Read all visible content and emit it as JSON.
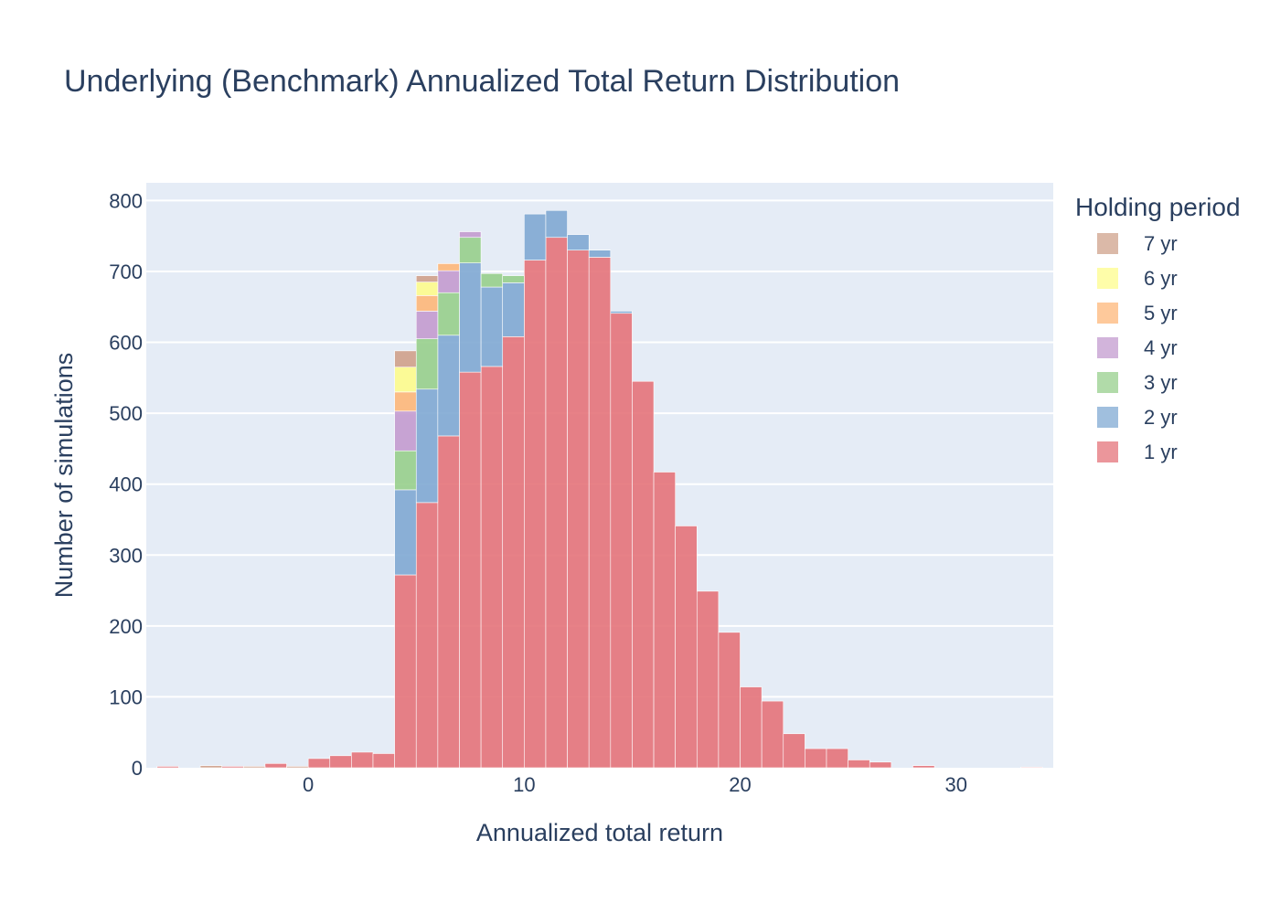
{
  "chart_data": {
    "type": "bar",
    "barmode": "stack",
    "title": "Underlying (Benchmark) Annualized Total Return Distribution",
    "xlabel": "Annualized total return",
    "ylabel": "Number of simulations",
    "xlim": [
      -7.5,
      34.5
    ],
    "ylim": [
      0,
      825
    ],
    "xticks": [
      0,
      10,
      20,
      30
    ],
    "yticks": [
      0,
      100,
      200,
      300,
      400,
      500,
      600,
      700,
      800
    ],
    "grid": true,
    "background": "#e5ecf6",
    "legend_title": "Holding period",
    "legend_position": "right",
    "bin_width": 1,
    "bin_starts": [
      -7,
      -6,
      -5,
      -4,
      -3,
      -2,
      -1,
      0,
      1,
      2,
      3,
      4,
      5,
      6,
      7,
      8,
      9,
      10,
      11,
      12,
      13,
      14,
      15,
      16,
      17,
      18,
      19,
      20,
      21,
      22,
      23,
      24,
      25,
      26,
      27,
      28,
      29,
      30,
      31,
      32,
      33
    ],
    "series": [
      {
        "name": "1 yr",
        "color": "#e4737a",
        "values": [
          2,
          0,
          0,
          2,
          0,
          6,
          0,
          13,
          17,
          22,
          20,
          272,
          374,
          468,
          558,
          566,
          608,
          716,
          748,
          730,
          720,
          641,
          545,
          417,
          341,
          249,
          191,
          114,
          94,
          48,
          27,
          27,
          11,
          8,
          0,
          3,
          0,
          0,
          0,
          0,
          1
        ]
      },
      {
        "name": "2 yr",
        "color": "#80a9d3",
        "values": [
          0,
          0,
          0,
          0,
          0,
          0,
          0,
          0,
          0,
          0,
          0,
          120,
          160,
          142,
          154,
          112,
          76,
          65,
          38,
          22,
          10,
          3,
          0,
          0,
          0,
          0,
          0,
          0,
          0,
          0,
          0,
          0,
          0,
          0,
          0,
          0,
          0,
          0,
          0,
          0,
          0
        ]
      },
      {
        "name": "3 yr",
        "color": "#97cf8c",
        "values": [
          0,
          0,
          0,
          0,
          0,
          0,
          0,
          0,
          0,
          0,
          0,
          55,
          71,
          60,
          36,
          19,
          10,
          0,
          0,
          0,
          0,
          0,
          0,
          0,
          0,
          0,
          0,
          0,
          0,
          0,
          0,
          0,
          0,
          0,
          0,
          0,
          0,
          0,
          0,
          0,
          0
        ]
      },
      {
        "name": "4 yr",
        "color": "#c39bcf",
        "values": [
          0,
          0,
          0,
          0,
          0,
          0,
          0,
          0,
          0,
          0,
          0,
          56,
          39,
          31,
          8,
          0,
          0,
          0,
          0,
          0,
          0,
          0,
          0,
          0,
          0,
          0,
          0,
          0,
          0,
          0,
          0,
          0,
          0,
          0,
          0,
          0,
          0,
          0,
          0,
          0,
          0
        ]
      },
      {
        "name": "5 yr",
        "color": "#fdb779",
        "values": [
          0,
          0,
          0,
          0,
          0,
          0,
          0,
          0,
          0,
          0,
          0,
          27,
          22,
          10,
          0,
          0,
          0,
          0,
          0,
          0,
          0,
          0,
          0,
          0,
          0,
          0,
          0,
          0,
          0,
          0,
          0,
          0,
          0,
          0,
          0,
          0,
          0,
          0,
          0,
          0,
          0
        ]
      },
      {
        "name": "6 yr",
        "color": "#fdfc8c",
        "values": [
          0,
          0,
          0,
          0,
          0,
          0,
          0,
          0,
          0,
          0,
          0,
          35,
          19,
          0,
          0,
          0,
          0,
          0,
          0,
          0,
          0,
          0,
          0,
          0,
          0,
          0,
          0,
          0,
          0,
          0,
          0,
          0,
          0,
          0,
          0,
          0,
          0,
          0,
          0,
          0,
          0
        ]
      },
      {
        "name": "7 yr",
        "color": "#cfa18b",
        "values": [
          0,
          0,
          3,
          0,
          2,
          0,
          2,
          0,
          0,
          0,
          0,
          23,
          9,
          0,
          0,
          0,
          0,
          0,
          0,
          0,
          0,
          0,
          0,
          0,
          0,
          0,
          0,
          0,
          0,
          0,
          0,
          0,
          0,
          0,
          0,
          0,
          0,
          0,
          0,
          0,
          0
        ]
      }
    ],
    "legend_order": [
      "7 yr",
      "6 yr",
      "5 yr",
      "4 yr",
      "3 yr",
      "2 yr",
      "1 yr"
    ]
  }
}
